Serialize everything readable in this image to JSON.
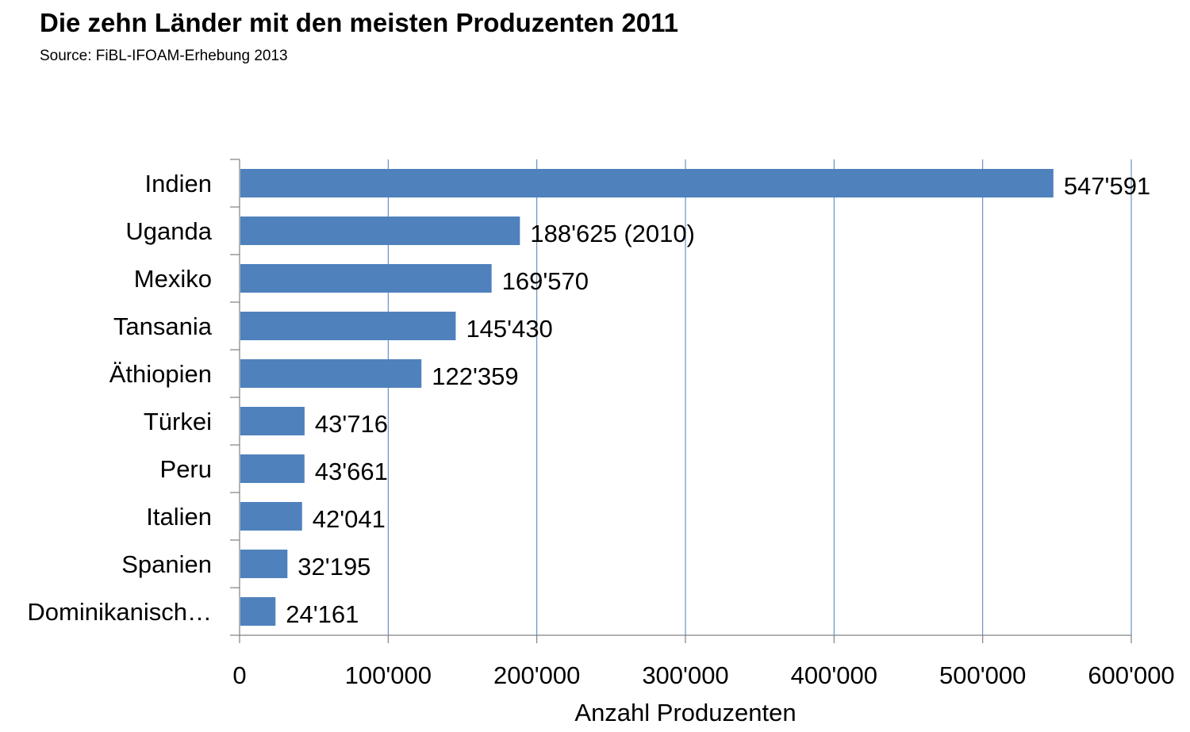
{
  "title": "Die zehn Länder mit den meisten Produzenten 2011",
  "subtitle": "Source: FiBL-IFOAM-Erhebung 2013",
  "chart_data": {
    "type": "bar",
    "orientation": "horizontal",
    "title": "Die zehn Länder mit den meisten Produzenten 2011",
    "subtitle": "Source: FiBL-IFOAM-Erhebung 2013",
    "xlabel": "Anzahl Produzenten",
    "ylabel": "",
    "xlim": [
      0,
      600000
    ],
    "xticks": [
      0,
      100000,
      200000,
      300000,
      400000,
      500000,
      600000
    ],
    "xtick_labels": [
      "0",
      "100'000",
      "200'000",
      "300'000",
      "400'000",
      "500'000",
      "600'000"
    ],
    "categories": [
      "Indien",
      "Uganda",
      "Mexiko",
      "Tansania",
      "Äthiopien",
      "Türkei",
      "Peru",
      "Italien",
      "Spanien",
      "Dominikanisch…"
    ],
    "values": [
      547591,
      188625,
      169570,
      145430,
      122359,
      43716,
      43661,
      42041,
      32195,
      24161
    ],
    "data_labels": [
      "547'591",
      "188'625 (2010)",
      "169'570",
      "145'430",
      "122'359",
      "43'716",
      "43'661",
      "42'041",
      "32'195",
      "24'161"
    ],
    "grid": "vertical",
    "legend": "none",
    "bar_color": "#4F81BD",
    "grid_color": "#4A7EBB"
  }
}
